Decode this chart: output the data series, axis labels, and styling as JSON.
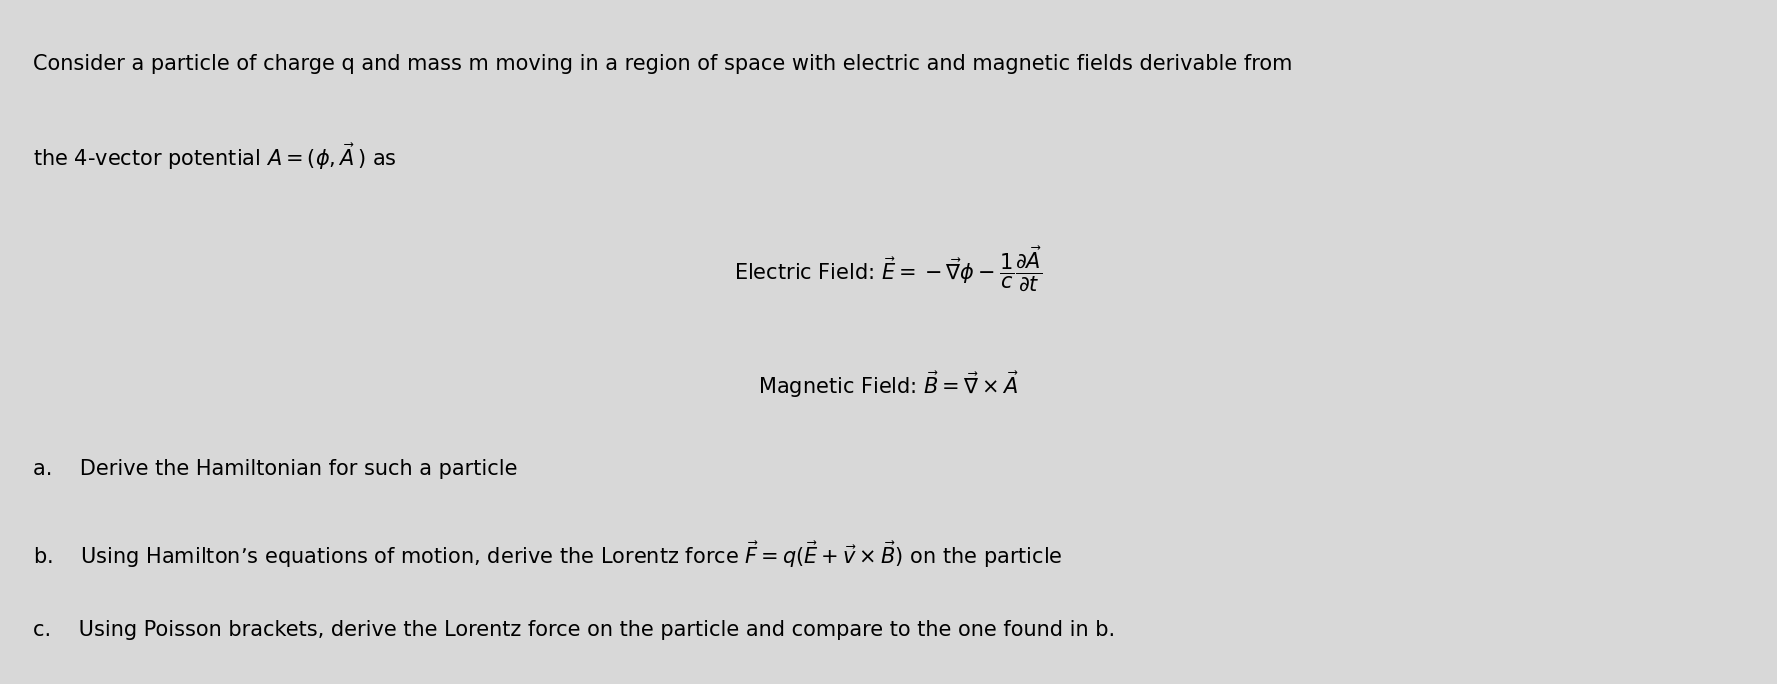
{
  "background_color": "#d8d8d8",
  "text_color": "#000000",
  "figsize": [
    17.77,
    6.84
  ],
  "dpi": 100,
  "line1": "Consider a particle of charge q and mass m moving in a region of space with electric and magnetic fields derivable from",
  "line2": "the 4-vector potential $A = (\\phi, \\vec{A}\\,)$ as",
  "electric_label": "Electric Field: ",
  "electric_formula": "$\\vec{E} = -\\vec{\\nabla}\\phi - \\dfrac{1}{c}\\dfrac{\\partial\\vec{A}}{\\partial t}$",
  "magnetic_label": "Magnetic Field: ",
  "magnetic_formula": "$\\vec{B} = \\vec{\\nabla} \\times \\vec{A}$",
  "item_a": "a.  Derive the Hamiltonian for such a particle",
  "item_b": "b.  Using Hamilton’s equations of motion, derive the Lorentz force $\\vec{F} = q(\\vec{E} + \\vec{v} \\times \\vec{B})$ on the particle",
  "item_c": "c.  Using Poisson brackets, derive the Lorentz force on the particle and compare to the one found in b.",
  "font_size_main": 15,
  "font_size_eqs": 15,
  "font_size_items": 15
}
